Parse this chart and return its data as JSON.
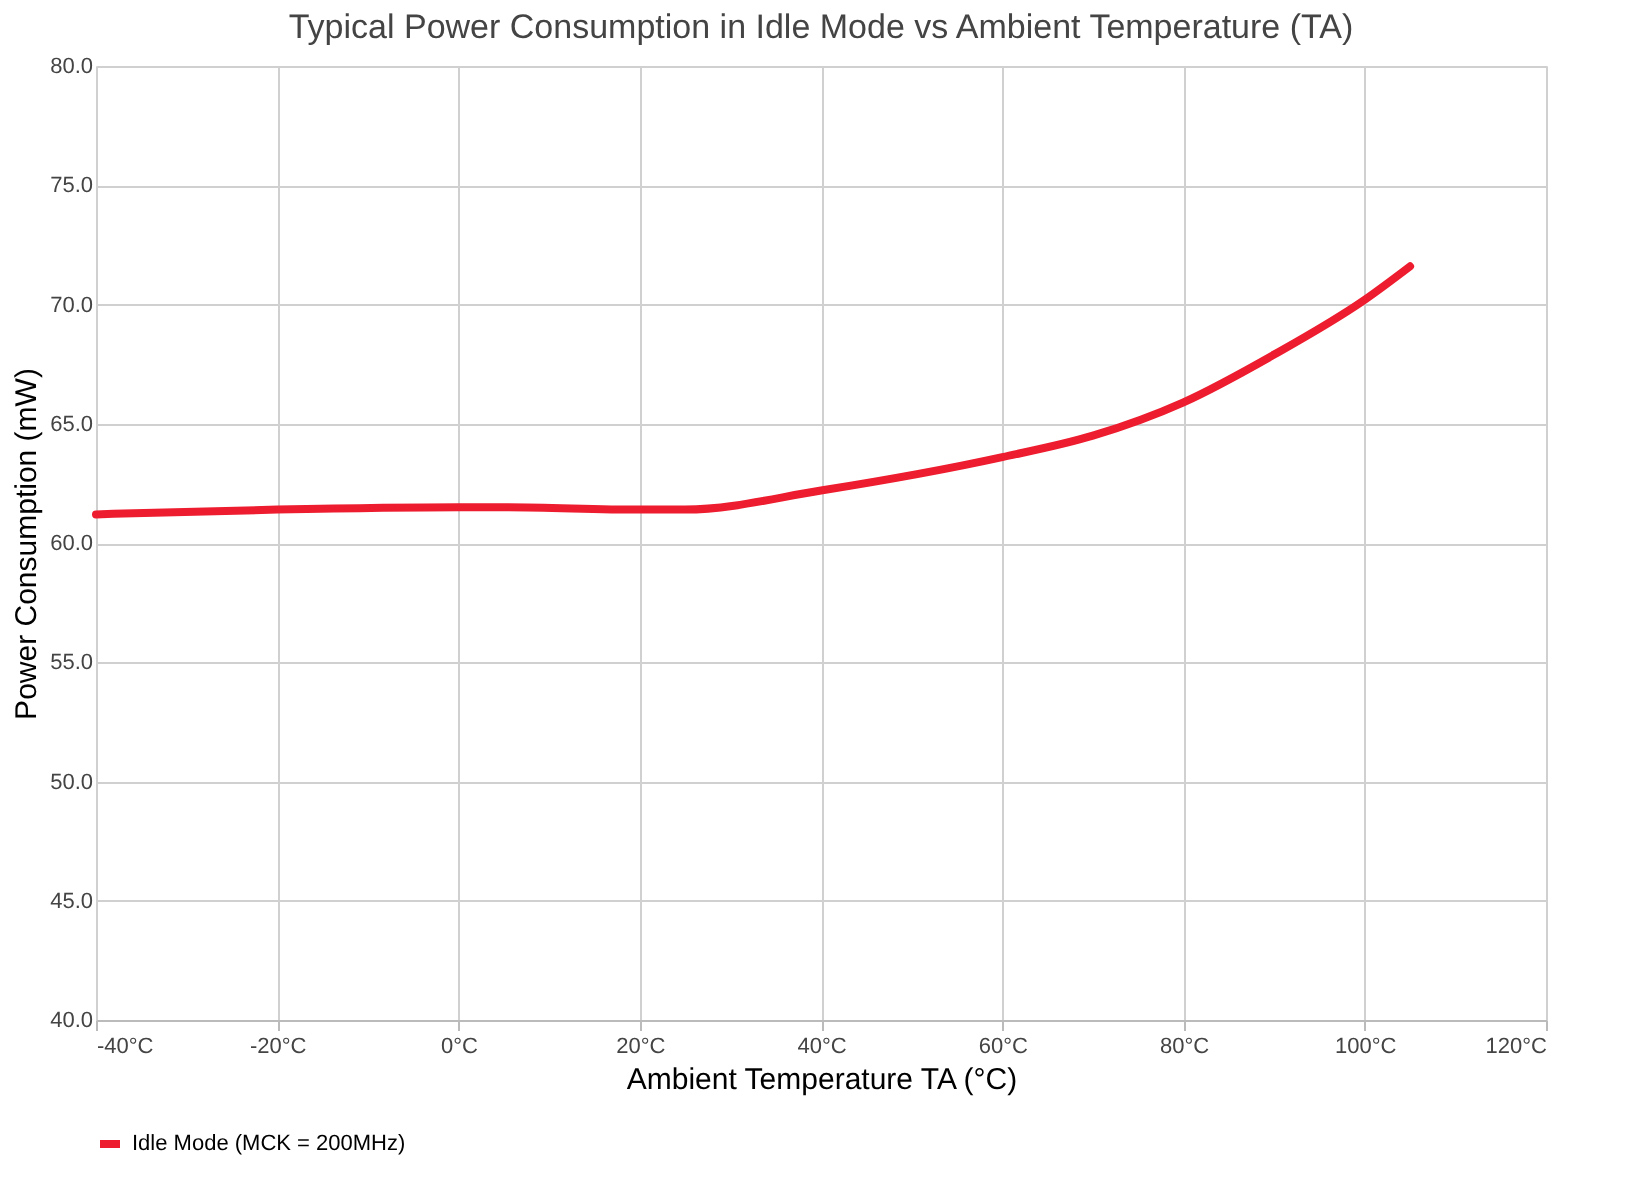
{
  "chart_data": {
    "type": "line",
    "title": "Typical Power Consumption in Idle Mode vs Ambient Temperature (TA)",
    "xlabel": "Ambient Temperature TA (°C)",
    "ylabel": "Power Consumption (mW)",
    "x": [
      -40,
      -20,
      0,
      5,
      20,
      25,
      40,
      60,
      70,
      80,
      90,
      100,
      105
    ],
    "series": [
      {
        "name": "Idle Mode (MCK = 200MHz)",
        "color": "#ed1c2e",
        "values": [
          61.2,
          61.4,
          61.5,
          61.5,
          61.4,
          61.4,
          62.2,
          63.6,
          64.5,
          65.9,
          67.9,
          70.2,
          71.6
        ]
      }
    ],
    "xlim": [
      -40,
      120
    ],
    "xticks": [
      {
        "value": -40,
        "label": "-40°C"
      },
      {
        "value": -20,
        "label": "-20°C"
      },
      {
        "value": 0,
        "label": "0°C"
      },
      {
        "value": 20,
        "label": "20°C"
      },
      {
        "value": 40,
        "label": "40°C"
      },
      {
        "value": 60,
        "label": "60°C"
      },
      {
        "value": 80,
        "label": "80°C"
      },
      {
        "value": 100,
        "label": "100°C"
      },
      {
        "value": 120,
        "label": "120°C"
      }
    ],
    "ylim": [
      40,
      80
    ],
    "yticks": [
      {
        "value": 40,
        "label": "40.0"
      },
      {
        "value": 45,
        "label": "45.0"
      },
      {
        "value": 50,
        "label": "50.0"
      },
      {
        "value": 55,
        "label": "55.0"
      },
      {
        "value": 60,
        "label": "60.0"
      },
      {
        "value": 65,
        "label": "65.0"
      },
      {
        "value": 70,
        "label": "70.0"
      },
      {
        "value": 75,
        "label": "75.0"
      },
      {
        "value": 80,
        "label": "80.0"
      }
    ],
    "grid": true,
    "legend": "bottom",
    "marker": "none",
    "line_style": "solid"
  }
}
